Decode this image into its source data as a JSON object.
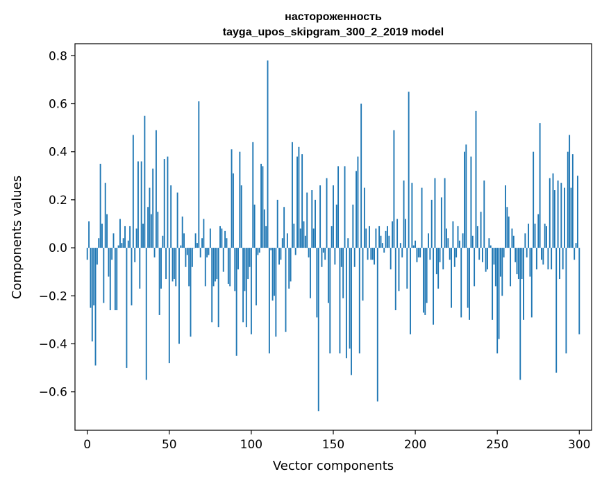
{
  "chart_data": {
    "type": "bar",
    "title": "настороженность",
    "subtitle": "tayga_upos_skipgram_300_2_2019 model",
    "xlabel": "Vector components",
    "ylabel": "Components values",
    "xlim": [
      -7.5,
      307.5
    ],
    "ylim": [
      -0.76,
      0.85
    ],
    "xticks": [
      0,
      50,
      100,
      150,
      200,
      250,
      300
    ],
    "xtick_labels": [
      "0",
      "50",
      "100",
      "150",
      "200",
      "250",
      "300"
    ],
    "yticks": [
      -0.6,
      -0.4,
      -0.2,
      0.0,
      0.2,
      0.4,
      0.6,
      0.8
    ],
    "ytick_labels": [
      "−0.6",
      "−0.4",
      "−0.2",
      "0.0",
      "0.2",
      "0.4",
      "0.6",
      "0.8"
    ],
    "grid": false,
    "bar_color": "#1f77b4",
    "values": [
      -0.05,
      0.11,
      -0.25,
      -0.39,
      -0.24,
      -0.49,
      -0.07,
      0.04,
      0.35,
      0.1,
      -0.23,
      0.27,
      0.14,
      -0.12,
      -0.26,
      -0.05,
      0.06,
      -0.26,
      -0.26,
      0.01,
      0.12,
      0.02,
      0.04,
      0.09,
      -0.5,
      0.03,
      0.09,
      -0.24,
      0.47,
      -0.06,
      0.08,
      0.36,
      -0.17,
      0.36,
      0.1,
      0.55,
      -0.55,
      0.17,
      0.25,
      0.14,
      0.33,
      -0.04,
      0.49,
      0.15,
      -0.28,
      -0.17,
      0.05,
      0.37,
      -0.13,
      0.38,
      -0.48,
      0.26,
      -0.14,
      -0.13,
      -0.16,
      0.23,
      -0.4,
      0.01,
      0.13,
      0.06,
      -0.08,
      -0.03,
      -0.16,
      -0.37,
      -0.08,
      0.0,
      0.06,
      0.02,
      0.61,
      -0.04,
      0.04,
      0.12,
      -0.16,
      -0.04,
      -0.03,
      0.08,
      -0.31,
      -0.16,
      -0.14,
      -0.13,
      -0.33,
      0.09,
      0.08,
      -0.1,
      0.07,
      0.04,
      -0.15,
      -0.16,
      0.41,
      0.31,
      -0.18,
      -0.45,
      -0.09,
      0.4,
      0.26,
      -0.31,
      -0.18,
      -0.33,
      -0.13,
      -0.08,
      -0.36,
      0.44,
      0.18,
      -0.24,
      -0.03,
      -0.02,
      0.35,
      0.34,
      0.16,
      0.09,
      0.78,
      -0.44,
      -0.01,
      -0.22,
      -0.2,
      -0.37,
      0.2,
      -0.07,
      -0.05,
      0.04,
      0.17,
      -0.35,
      0.06,
      -0.17,
      -0.14,
      0.44,
      0.1,
      -0.03,
      0.38,
      0.42,
      0.08,
      0.39,
      0.11,
      0.05,
      0.23,
      -0.04,
      -0.21,
      0.24,
      0.08,
      0.2,
      -0.29,
      -0.68,
      0.26,
      -0.08,
      -0.02,
      -0.05,
      0.29,
      -0.23,
      -0.44,
      0.09,
      0.26,
      -0.07,
      0.18,
      0.34,
      -0.44,
      -0.08,
      -0.21,
      0.34,
      -0.46,
      0.04,
      -0.42,
      -0.53,
      0.18,
      -0.08,
      0.32,
      0.38,
      -0.44,
      0.6,
      -0.22,
      0.25,
      0.08,
      -0.05,
      0.09,
      -0.05,
      -0.05,
      -0.07,
      0.08,
      -0.64,
      0.09,
      0.05,
      0.02,
      -0.02,
      0.07,
      0.09,
      0.05,
      -0.09,
      0.11,
      0.49,
      -0.26,
      0.12,
      -0.18,
      0.02,
      -0.04,
      0.28,
      0.12,
      -0.17,
      0.65,
      -0.36,
      0.27,
      0.01,
      0.03,
      -0.06,
      -0.04,
      -0.04,
      0.25,
      -0.27,
      -0.28,
      -0.23,
      0.06,
      -0.05,
      0.2,
      -0.32,
      0.29,
      -0.11,
      -0.17,
      -0.06,
      0.21,
      -0.09,
      0.29,
      0.08,
      0.04,
      -0.05,
      -0.25,
      0.11,
      -0.08,
      -0.04,
      0.09,
      0.03,
      -0.29,
      0.06,
      0.4,
      0.43,
      -0.25,
      -0.3,
      0.38,
      0.05,
      -0.16,
      0.57,
      0.09,
      -0.05,
      0.15,
      -0.06,
      0.28,
      -0.1,
      -0.09,
      0.04,
      0.01,
      -0.3,
      -0.07,
      -0.16,
      -0.44,
      -0.38,
      -0.12,
      -0.2,
      -0.04,
      0.26,
      0.17,
      0.13,
      -0.16,
      0.08,
      0.05,
      -0.06,
      -0.11,
      -0.13,
      -0.55,
      -0.13,
      -0.3,
      0.06,
      -0.04,
      0.1,
      -0.12,
      -0.29,
      0.4,
      0.1,
      -0.09,
      0.14,
      0.52,
      -0.05,
      -0.07,
      0.1,
      0.09,
      -0.09,
      0.29,
      -0.09,
      0.31,
      0.24,
      -0.52,
      0.28,
      -0.13,
      0.27,
      -0.09,
      0.25,
      -0.44,
      0.4,
      0.47,
      0.25,
      0.39,
      -0.05,
      0.02,
      0.3,
      -0.36
    ]
  }
}
